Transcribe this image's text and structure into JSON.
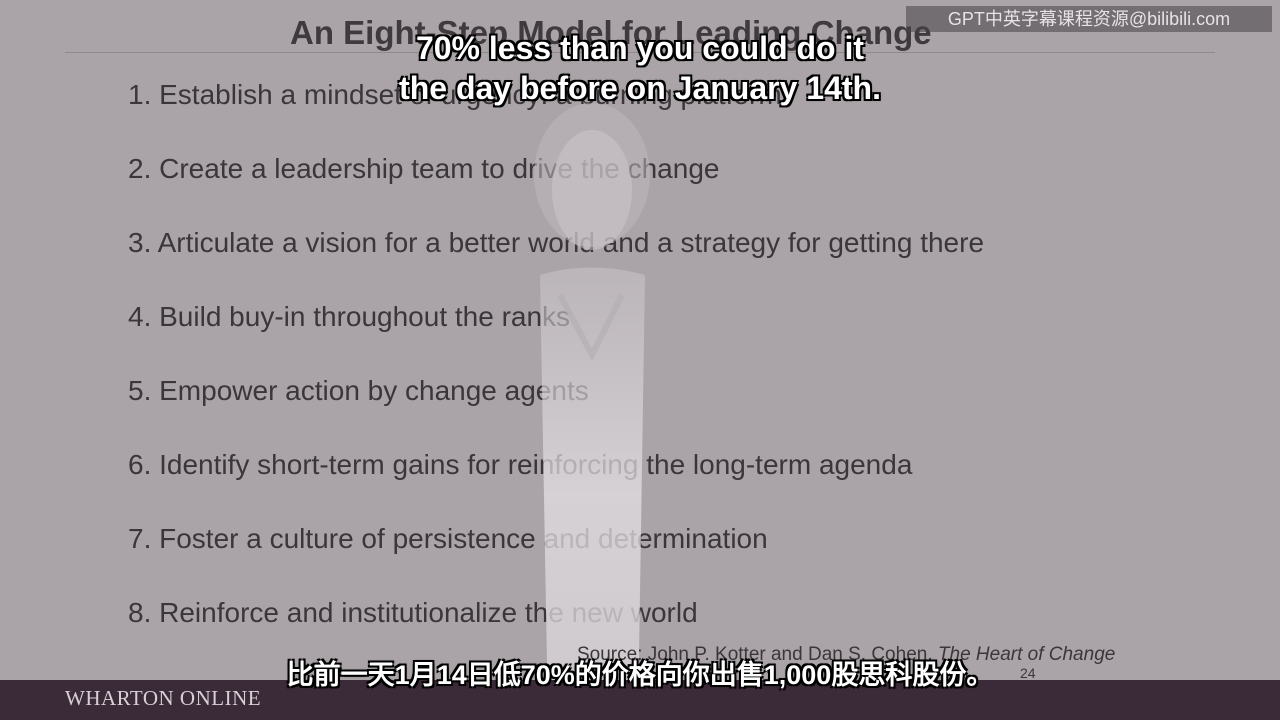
{
  "slide": {
    "title": "An Eight-Step Model for Leading Change",
    "steps": [
      "1. Establish a mindset of urgency: a burning platform",
      "2. Create a leadership team to drive the change",
      "3. Articulate a vision for a better world and a strategy for getting there",
      "4. Build buy-in throughout the ranks",
      "5. Empower action by change agents",
      "6. Identify short-term gains for reinforcing the long-term agenda",
      "7. Foster a culture of persistence and determination",
      "8. Reinforce and institutionalize the new world"
    ],
    "source_prefix": "Source:  John P. Kotter and Dan S. Cohen, ",
    "source_book": "The Heart of Change",
    "page_number": "24"
  },
  "footer": {
    "brand": "WHARTON ONLINE"
  },
  "watermark": {
    "text": "GPT中英字幕课程资源@bilibili.com"
  },
  "subtitles": {
    "english_line1": "70% less than you could do it",
    "english_line2": "the day before on January 14th.",
    "chinese": "比前一天1月14日低70%的价格向你出售1,000股思科股份。"
  },
  "colors": {
    "slide_background": "#aaa4a8",
    "text": "#3a3639",
    "footer_bar": "#3b2a38",
    "caption_text": "#ffffff",
    "caption_outline": "#000000"
  }
}
